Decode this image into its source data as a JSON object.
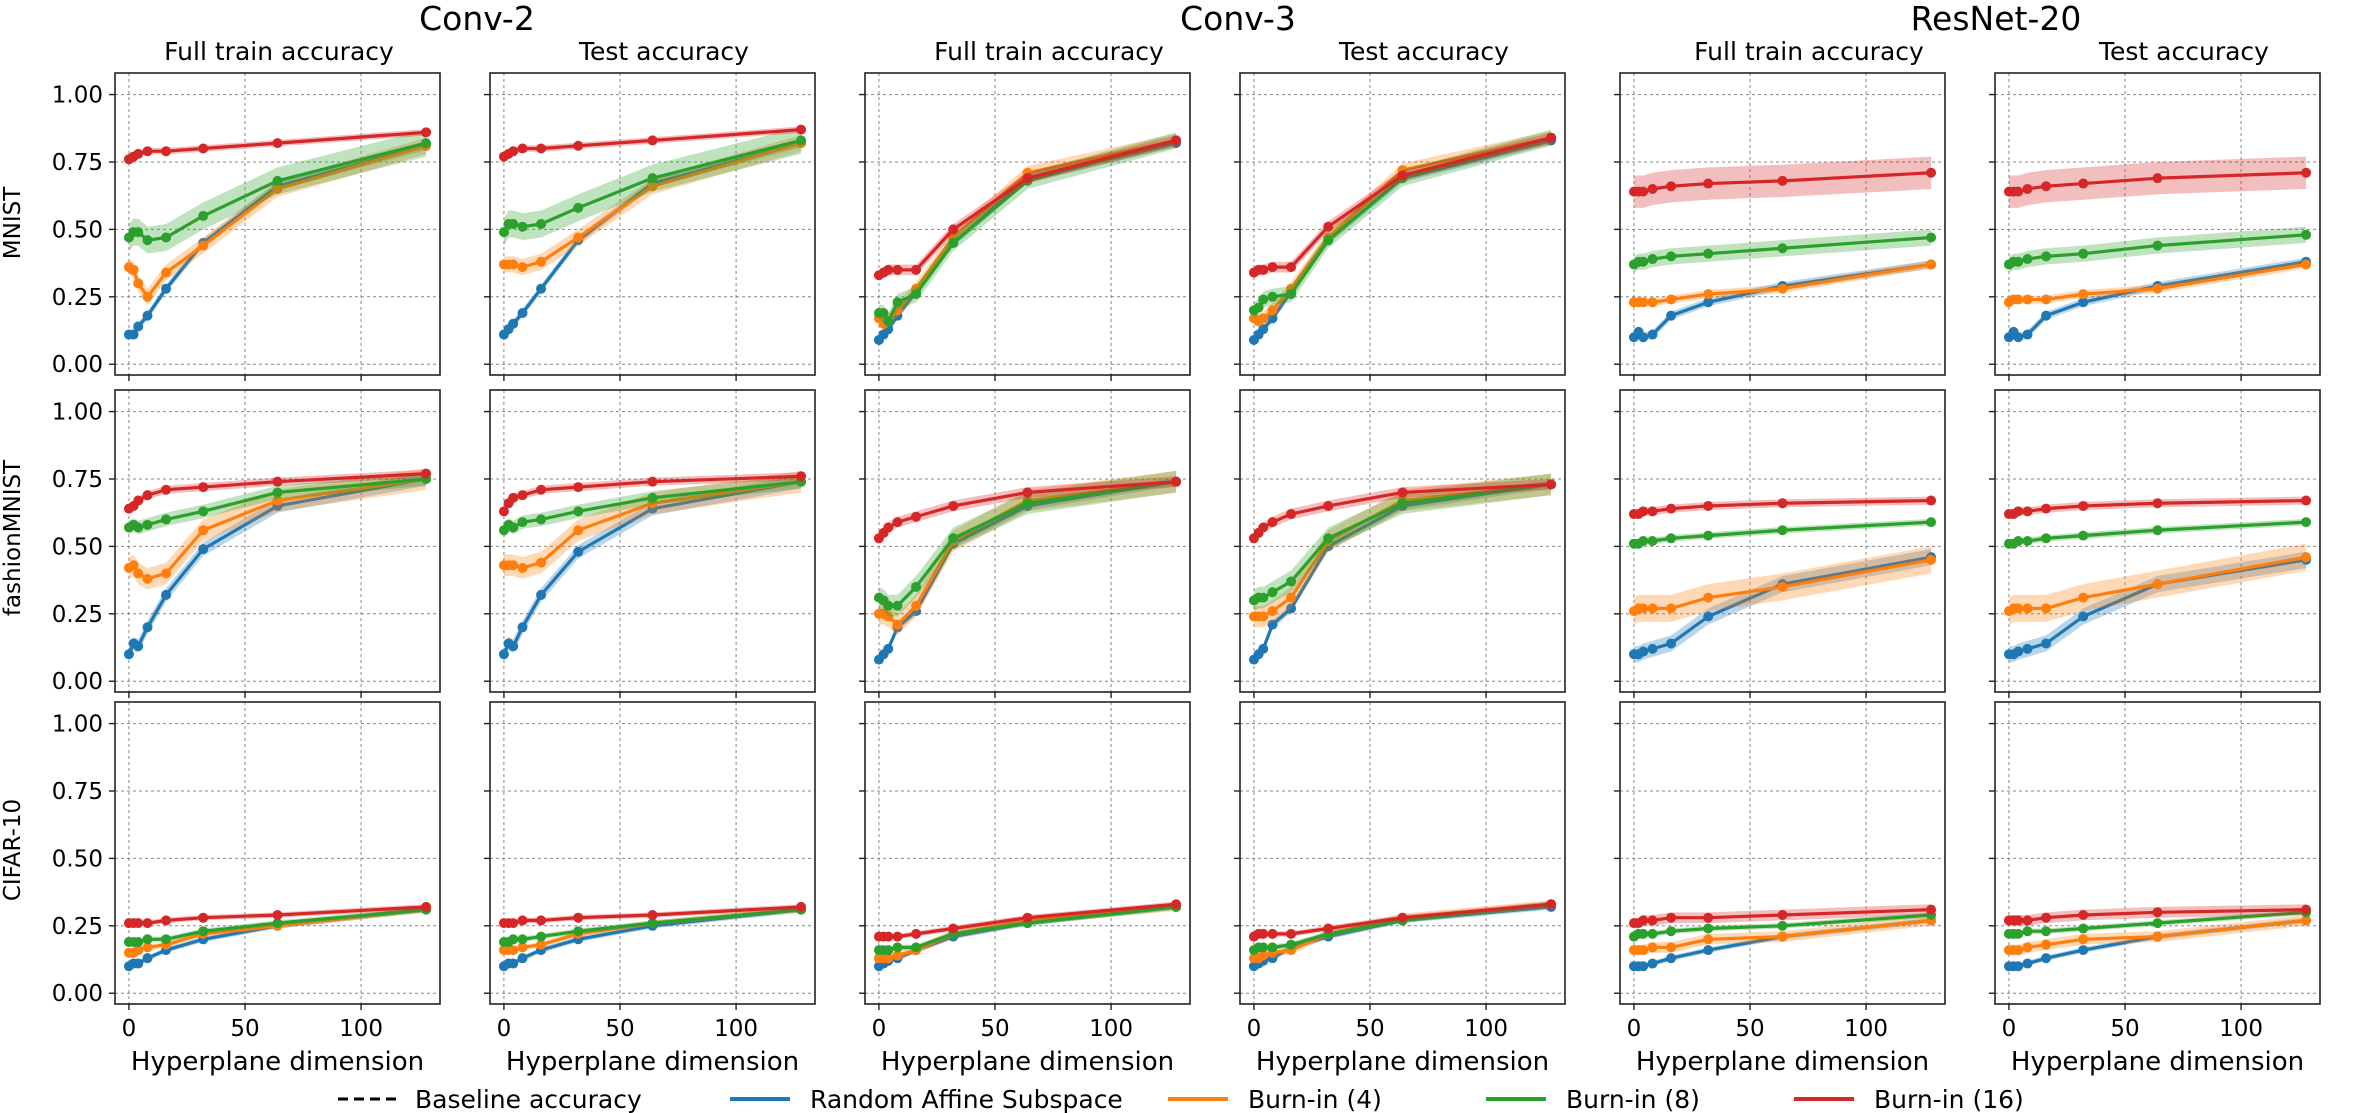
{
  "chart_data": {
    "type": "line",
    "models": [
      "Conv-2",
      "Conv-3",
      "ResNet-20"
    ],
    "metrics": [
      "Full train accuracy",
      "Test accuracy"
    ],
    "datasets": [
      "MNIST",
      "fashionMNIST",
      "CIFAR-10"
    ],
    "xlabel": "Hyperplane dimension",
    "xlim": [
      -6,
      134
    ],
    "ylim": [
      -0.04,
      1.08
    ],
    "x_ticks": [
      "0",
      "50",
      "100"
    ],
    "y_ticks": [
      "0.00",
      "0.25",
      "0.50",
      "0.75",
      "1.00"
    ],
    "x": [
      0,
      2,
      4,
      8,
      16,
      32,
      64,
      128
    ],
    "legend": {
      "placement": "bottom-center",
      "entries": [
        {
          "label": "Baseline accuracy",
          "style": "dashed",
          "color": "#000000"
        },
        {
          "label": "Random Affine Subspace",
          "style": "solid",
          "color": "#1f77b4"
        },
        {
          "label": "Burn-in (4)",
          "style": "solid",
          "color": "#ff7f0e"
        },
        {
          "label": "Burn-in (8)",
          "style": "solid",
          "color": "#2ca02c"
        },
        {
          "label": "Burn-in (16)",
          "style": "solid",
          "color": "#d62728"
        }
      ]
    },
    "series_names": [
      "Random Affine Subspace",
      "Burn-in (4)",
      "Burn-in (8)",
      "Burn-in (16)"
    ],
    "colors": [
      "#1f77b4",
      "#ff7f0e",
      "#2ca02c",
      "#d62728"
    ],
    "panels": [
      {
        "row": 0,
        "col": 0,
        "values": [
          [
            0.11,
            0.11,
            0.14,
            0.18,
            0.28,
            0.45,
            0.66,
            0.81
          ],
          [
            0.36,
            0.35,
            0.3,
            0.25,
            0.34,
            0.44,
            0.65,
            0.81
          ],
          [
            0.47,
            0.49,
            0.49,
            0.46,
            0.47,
            0.55,
            0.68,
            0.82
          ],
          [
            0.76,
            0.77,
            0.78,
            0.79,
            0.79,
            0.8,
            0.82,
            0.86
          ]
        ],
        "bands": [
          0.015,
          0.03,
          0.05,
          0.012
        ]
      },
      {
        "row": 0,
        "col": 1,
        "values": [
          [
            0.11,
            0.13,
            0.15,
            0.19,
            0.28,
            0.46,
            0.67,
            0.82
          ],
          [
            0.37,
            0.37,
            0.37,
            0.36,
            0.38,
            0.47,
            0.66,
            0.82
          ],
          [
            0.49,
            0.52,
            0.52,
            0.51,
            0.52,
            0.58,
            0.69,
            0.83
          ],
          [
            0.77,
            0.78,
            0.79,
            0.8,
            0.8,
            0.81,
            0.83,
            0.87
          ]
        ],
        "bands": [
          0.015,
          0.03,
          0.05,
          0.012
        ]
      },
      {
        "row": 0,
        "col": 2,
        "values": [
          [
            0.09,
            0.11,
            0.13,
            0.18,
            0.27,
            0.45,
            0.69,
            0.82
          ],
          [
            0.17,
            0.15,
            0.16,
            0.2,
            0.28,
            0.47,
            0.71,
            0.83
          ],
          [
            0.19,
            0.19,
            0.16,
            0.23,
            0.26,
            0.45,
            0.68,
            0.83
          ],
          [
            0.33,
            0.34,
            0.35,
            0.35,
            0.35,
            0.5,
            0.69,
            0.83
          ]
        ],
        "bands": [
          0.015,
          0.025,
          0.03,
          0.02
        ]
      },
      {
        "row": 0,
        "col": 3,
        "values": [
          [
            0.09,
            0.11,
            0.13,
            0.17,
            0.27,
            0.46,
            0.69,
            0.83
          ],
          [
            0.17,
            0.16,
            0.17,
            0.2,
            0.28,
            0.47,
            0.72,
            0.84
          ],
          [
            0.2,
            0.21,
            0.24,
            0.25,
            0.26,
            0.46,
            0.69,
            0.84
          ],
          [
            0.34,
            0.35,
            0.35,
            0.36,
            0.36,
            0.51,
            0.7,
            0.84
          ]
        ],
        "bands": [
          0.015,
          0.025,
          0.03,
          0.02
        ]
      },
      {
        "row": 0,
        "col": 4,
        "values": [
          [
            0.1,
            0.12,
            0.1,
            0.11,
            0.18,
            0.23,
            0.29,
            0.37
          ],
          [
            0.23,
            0.23,
            0.23,
            0.23,
            0.24,
            0.26,
            0.28,
            0.37
          ],
          [
            0.37,
            0.38,
            0.38,
            0.39,
            0.4,
            0.41,
            0.43,
            0.47
          ],
          [
            0.64,
            0.64,
            0.64,
            0.65,
            0.66,
            0.67,
            0.68,
            0.71
          ]
        ],
        "bands": [
          0.015,
          0.015,
          0.03,
          0.06
        ]
      },
      {
        "row": 0,
        "col": 5,
        "values": [
          [
            0.1,
            0.12,
            0.1,
            0.11,
            0.18,
            0.23,
            0.29,
            0.38
          ],
          [
            0.23,
            0.24,
            0.24,
            0.24,
            0.24,
            0.26,
            0.28,
            0.37
          ],
          [
            0.37,
            0.38,
            0.38,
            0.39,
            0.4,
            0.41,
            0.44,
            0.48
          ],
          [
            0.64,
            0.64,
            0.64,
            0.65,
            0.66,
            0.67,
            0.69,
            0.71
          ]
        ],
        "bands": [
          0.015,
          0.015,
          0.03,
          0.06
        ]
      },
      {
        "row": 1,
        "col": 0,
        "values": [
          [
            0.1,
            0.14,
            0.13,
            0.2,
            0.32,
            0.49,
            0.65,
            0.75
          ],
          [
            0.42,
            0.43,
            0.4,
            0.38,
            0.4,
            0.56,
            0.67,
            0.75
          ],
          [
            0.57,
            0.58,
            0.57,
            0.58,
            0.6,
            0.63,
            0.7,
            0.75
          ],
          [
            0.64,
            0.65,
            0.67,
            0.69,
            0.71,
            0.72,
            0.74,
            0.77
          ]
        ],
        "bands": [
          0.025,
          0.04,
          0.025,
          0.015
        ]
      },
      {
        "row": 1,
        "col": 1,
        "values": [
          [
            0.1,
            0.14,
            0.13,
            0.2,
            0.32,
            0.48,
            0.64,
            0.74
          ],
          [
            0.43,
            0.43,
            0.43,
            0.42,
            0.44,
            0.56,
            0.66,
            0.74
          ],
          [
            0.56,
            0.58,
            0.57,
            0.59,
            0.6,
            0.63,
            0.68,
            0.74
          ],
          [
            0.63,
            0.66,
            0.68,
            0.69,
            0.71,
            0.72,
            0.74,
            0.76
          ]
        ],
        "bands": [
          0.025,
          0.04,
          0.025,
          0.015
        ]
      },
      {
        "row": 1,
        "col": 2,
        "values": [
          [
            0.08,
            0.1,
            0.12,
            0.2,
            0.26,
            0.51,
            0.65,
            0.74
          ],
          [
            0.25,
            0.25,
            0.24,
            0.21,
            0.28,
            0.52,
            0.67,
            0.74
          ],
          [
            0.31,
            0.3,
            0.28,
            0.28,
            0.35,
            0.53,
            0.66,
            0.74
          ],
          [
            0.53,
            0.55,
            0.57,
            0.59,
            0.61,
            0.65,
            0.7,
            0.74
          ]
        ],
        "bands": [
          0.015,
          0.04,
          0.04,
          0.02
        ]
      },
      {
        "row": 1,
        "col": 3,
        "values": [
          [
            0.08,
            0.1,
            0.12,
            0.21,
            0.27,
            0.5,
            0.65,
            0.73
          ],
          [
            0.24,
            0.24,
            0.24,
            0.26,
            0.31,
            0.52,
            0.67,
            0.73
          ],
          [
            0.3,
            0.31,
            0.31,
            0.33,
            0.37,
            0.53,
            0.66,
            0.73
          ],
          [
            0.53,
            0.55,
            0.57,
            0.59,
            0.62,
            0.65,
            0.7,
            0.73
          ]
        ],
        "bands": [
          0.015,
          0.04,
          0.04,
          0.02
        ]
      },
      {
        "row": 1,
        "col": 4,
        "values": [
          [
            0.1,
            0.1,
            0.11,
            0.12,
            0.14,
            0.24,
            0.36,
            0.46
          ],
          [
            0.26,
            0.27,
            0.27,
            0.27,
            0.27,
            0.31,
            0.35,
            0.45
          ],
          [
            0.51,
            0.51,
            0.52,
            0.52,
            0.53,
            0.54,
            0.56,
            0.59
          ],
          [
            0.62,
            0.62,
            0.63,
            0.63,
            0.64,
            0.65,
            0.66,
            0.67
          ]
        ],
        "bands": [
          0.03,
          0.05,
          0.012,
          0.015
        ]
      },
      {
        "row": 1,
        "col": 5,
        "values": [
          [
            0.1,
            0.1,
            0.11,
            0.12,
            0.14,
            0.24,
            0.36,
            0.45
          ],
          [
            0.26,
            0.27,
            0.27,
            0.27,
            0.27,
            0.31,
            0.36,
            0.46
          ],
          [
            0.51,
            0.51,
            0.52,
            0.52,
            0.53,
            0.54,
            0.56,
            0.59
          ],
          [
            0.62,
            0.62,
            0.63,
            0.63,
            0.64,
            0.65,
            0.66,
            0.67
          ]
        ],
        "bands": [
          0.03,
          0.05,
          0.012,
          0.015
        ]
      },
      {
        "row": 2,
        "col": 0,
        "values": [
          [
            0.1,
            0.11,
            0.11,
            0.13,
            0.16,
            0.2,
            0.25,
            0.31
          ],
          [
            0.15,
            0.15,
            0.16,
            0.17,
            0.18,
            0.22,
            0.25,
            0.31
          ],
          [
            0.19,
            0.19,
            0.19,
            0.2,
            0.2,
            0.23,
            0.26,
            0.31
          ],
          [
            0.26,
            0.26,
            0.26,
            0.26,
            0.27,
            0.28,
            0.29,
            0.32
          ]
        ],
        "bands": [
          0.01,
          0.01,
          0.01,
          0.01
        ]
      },
      {
        "row": 2,
        "col": 1,
        "values": [
          [
            0.1,
            0.11,
            0.11,
            0.13,
            0.16,
            0.2,
            0.25,
            0.31
          ],
          [
            0.16,
            0.16,
            0.16,
            0.17,
            0.18,
            0.22,
            0.26,
            0.31
          ],
          [
            0.19,
            0.19,
            0.2,
            0.2,
            0.21,
            0.23,
            0.26,
            0.31
          ],
          [
            0.26,
            0.26,
            0.26,
            0.27,
            0.27,
            0.28,
            0.29,
            0.32
          ]
        ],
        "bands": [
          0.01,
          0.01,
          0.01,
          0.01
        ]
      },
      {
        "row": 2,
        "col": 2,
        "values": [
          [
            0.1,
            0.11,
            0.12,
            0.13,
            0.16,
            0.21,
            0.26,
            0.32
          ],
          [
            0.13,
            0.13,
            0.13,
            0.14,
            0.16,
            0.22,
            0.27,
            0.32
          ],
          [
            0.16,
            0.16,
            0.16,
            0.17,
            0.17,
            0.22,
            0.26,
            0.32
          ],
          [
            0.21,
            0.21,
            0.21,
            0.21,
            0.22,
            0.24,
            0.28,
            0.33
          ]
        ],
        "bands": [
          0.01,
          0.015,
          0.01,
          0.01
        ]
      },
      {
        "row": 2,
        "col": 3,
        "values": [
          [
            0.1,
            0.11,
            0.12,
            0.13,
            0.17,
            0.21,
            0.27,
            0.32
          ],
          [
            0.13,
            0.13,
            0.14,
            0.15,
            0.16,
            0.22,
            0.28,
            0.33
          ],
          [
            0.16,
            0.17,
            0.17,
            0.17,
            0.18,
            0.22,
            0.27,
            0.33
          ],
          [
            0.21,
            0.22,
            0.22,
            0.22,
            0.22,
            0.24,
            0.28,
            0.33
          ]
        ],
        "bands": [
          0.01,
          0.015,
          0.01,
          0.01
        ]
      },
      {
        "row": 2,
        "col": 4,
        "values": [
          [
            0.1,
            0.1,
            0.1,
            0.11,
            0.13,
            0.16,
            0.21,
            0.27
          ],
          [
            0.16,
            0.16,
            0.16,
            0.17,
            0.17,
            0.2,
            0.21,
            0.27
          ],
          [
            0.21,
            0.22,
            0.22,
            0.22,
            0.23,
            0.24,
            0.25,
            0.29
          ],
          [
            0.26,
            0.26,
            0.27,
            0.27,
            0.28,
            0.28,
            0.29,
            0.31
          ]
        ],
        "bands": [
          0.01,
          0.02,
          0.01,
          0.02
        ]
      },
      {
        "row": 2,
        "col": 5,
        "values": [
          [
            0.1,
            0.1,
            0.1,
            0.11,
            0.13,
            0.16,
            0.21,
            0.27
          ],
          [
            0.16,
            0.16,
            0.16,
            0.17,
            0.18,
            0.2,
            0.21,
            0.27
          ],
          [
            0.22,
            0.22,
            0.22,
            0.23,
            0.23,
            0.24,
            0.26,
            0.3
          ],
          [
            0.27,
            0.27,
            0.27,
            0.27,
            0.28,
            0.29,
            0.3,
            0.31
          ]
        ],
        "bands": [
          0.01,
          0.02,
          0.01,
          0.02
        ]
      }
    ]
  }
}
